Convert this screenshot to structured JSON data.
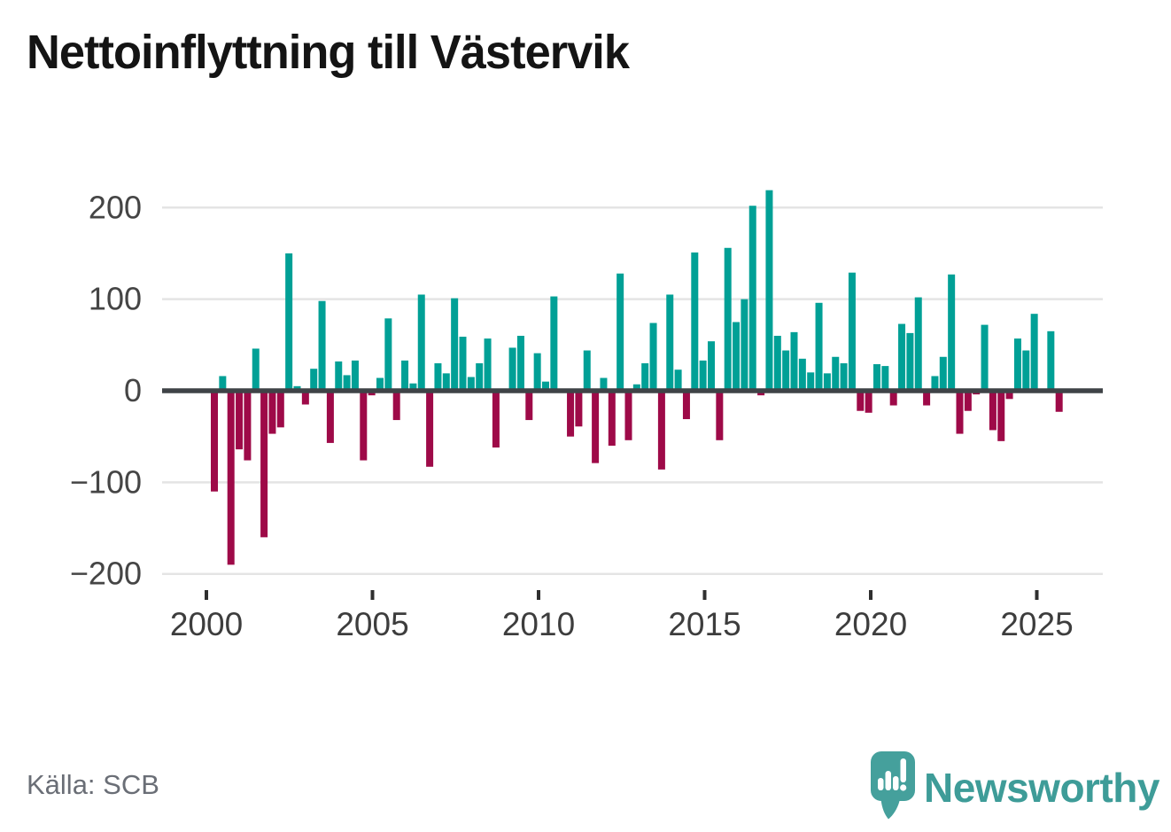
{
  "title": "Nettoinflyttning till Västervik",
  "source": "Källa: SCB",
  "brand": "Newsworthy",
  "colors": {
    "positive": "#00a096",
    "negative": "#9e0a48",
    "grid": "#e4e4e4",
    "zero_axis": "#3f4347",
    "tick": "#2f2f2f",
    "axis_label": "#454545",
    "title_text": "#141414",
    "source_text": "#6a6e76",
    "brand_teal": "#3e9c98"
  },
  "chart_data": {
    "type": "bar",
    "title": "Nettoinflyttning till Västervik",
    "frequency": "quarterly",
    "start_year": 2000,
    "start_quarter": 1,
    "values": [
      -110,
      16,
      -190,
      -64,
      -76,
      46,
      -160,
      -47,
      -40,
      150,
      5,
      -15,
      24,
      98,
      -57,
      32,
      17,
      33,
      -76,
      -5,
      14,
      79,
      -32,
      33,
      8,
      105,
      -83,
      30,
      19,
      101,
      59,
      15,
      30,
      57,
      -62,
      0,
      47,
      60,
      -32,
      41,
      10,
      103,
      0,
      -50,
      -39,
      44,
      -79,
      14,
      -60,
      128,
      -54,
      7,
      30,
      74,
      -86,
      105,
      23,
      -31,
      151,
      33,
      54,
      -54,
      156,
      75,
      100,
      202,
      -5,
      219,
      60,
      44,
      64,
      35,
      20,
      96,
      19,
      37,
      30,
      129,
      -22,
      -24,
      29,
      27,
      -16,
      73,
      63,
      102,
      -16,
      16,
      37,
      127,
      -47,
      -22,
      -4,
      72,
      -43,
      -55,
      -9,
      57,
      44,
      84,
      0,
      65,
      -23
    ],
    "ylim": [
      -220,
      230
    ],
    "yticks": [
      200,
      100,
      0,
      -100,
      -200
    ],
    "xticks": [
      2000,
      2005,
      2010,
      2015,
      2020,
      2025
    ],
    "grid": true,
    "legend": "none",
    "positive_color": "#00a096",
    "negative_color": "#9e0a48"
  }
}
